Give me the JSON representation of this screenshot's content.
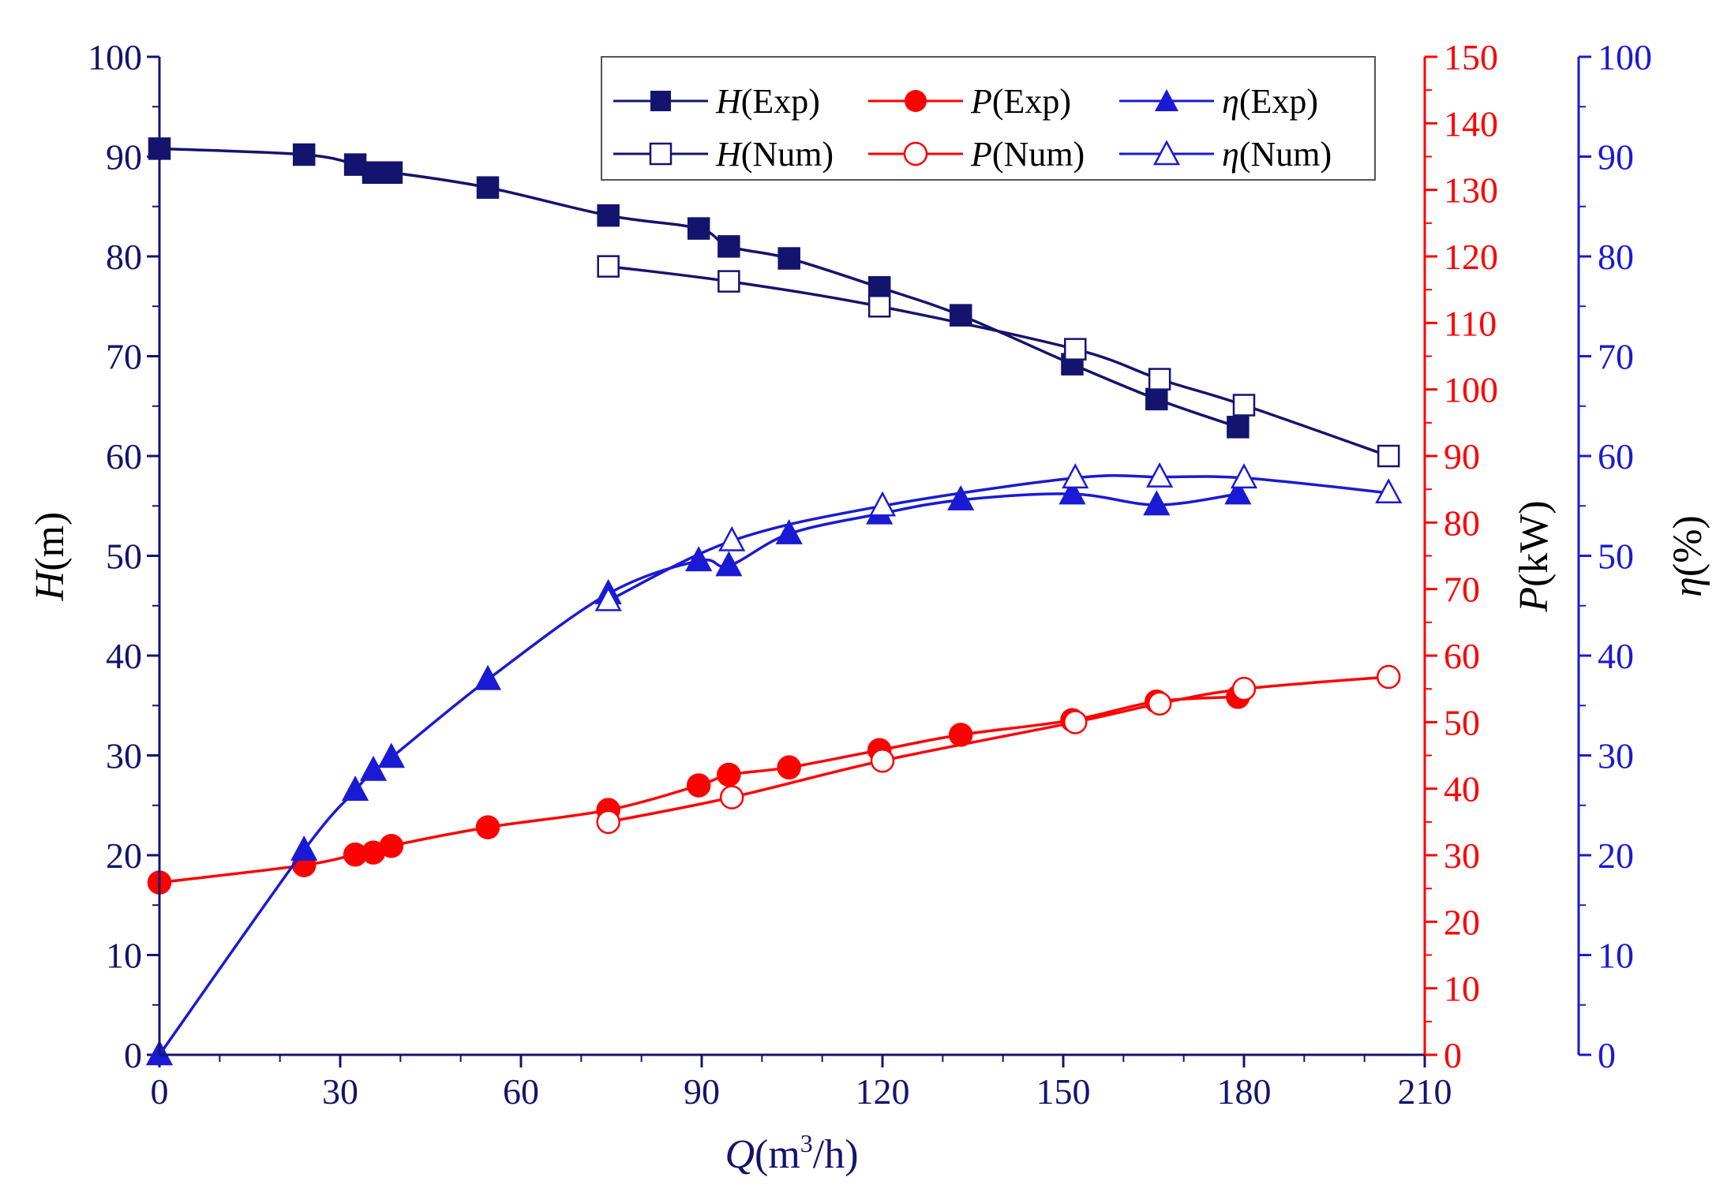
{
  "chart_data": {
    "type": "line",
    "x_axis": {
      "label_var": "Q",
      "label_unit_pre": "(m",
      "label_sup": "3",
      "label_unit_post": "/h)",
      "range": [
        0,
        210
      ],
      "ticks": [
        "0",
        "30",
        "60",
        "90",
        "120",
        "150",
        "180",
        "210"
      ]
    },
    "y_axes": {
      "H": {
        "label_var": "H",
        "label_unit": "(m)",
        "range": [
          0,
          100
        ],
        "color": "#14146e",
        "ticks": [
          "0",
          "10",
          "20",
          "30",
          "40",
          "50",
          "60",
          "70",
          "80",
          "90",
          "100"
        ]
      },
      "P": {
        "label_var": "P",
        "label_unit": "(kW)",
        "range": [
          0,
          150
        ],
        "color": "#ff0000",
        "ticks": [
          "0",
          "10",
          "20",
          "30",
          "40",
          "50",
          "60",
          "70",
          "80",
          "90",
          "100",
          "110",
          "120",
          "130",
          "140",
          "150"
        ]
      },
      "eta": {
        "label_var": "η",
        "label_unit": "(%)",
        "range": [
          0,
          100
        ],
        "color": "#1a1ad4",
        "ticks": [
          "0",
          "10",
          "20",
          "30",
          "40",
          "50",
          "60",
          "70",
          "80",
          "90",
          "100"
        ]
      }
    },
    "series": [
      {
        "id": "h-exp",
        "name": "H(Exp)",
        "var": "H",
        "suffix": "(Exp)",
        "axis": "H",
        "color": "#14146e",
        "marker": "square",
        "filled": true,
        "x": [
          0,
          24,
          32.5,
          35.5,
          38.5,
          54.5,
          74.5,
          89.5,
          94.5,
          104.5,
          119.5,
          133,
          151.5,
          165.5,
          179
        ],
        "y": [
          90.8,
          90.2,
          89.2,
          88.4,
          88.4,
          86.9,
          84.1,
          82.8,
          81,
          79.8,
          76.9,
          74.1,
          69.2,
          65.7,
          62.9
        ]
      },
      {
        "id": "h-num",
        "name": "H(Num)",
        "var": "H",
        "suffix": "(Num)",
        "axis": "H",
        "color": "#14146e",
        "marker": "square",
        "filled": false,
        "x": [
          74.5,
          94.5,
          119.5,
          152,
          166,
          180,
          204
        ],
        "y": [
          79,
          77.5,
          75,
          70.7,
          67.7,
          65.1,
          60
        ]
      },
      {
        "id": "p-exp",
        "name": "P(Exp)",
        "var": "P",
        "suffix": "(Exp)",
        "axis": "P",
        "color": "#ff0000",
        "marker": "circle",
        "filled": true,
        "x": [
          0,
          24,
          32.5,
          35.5,
          38.5,
          54.5,
          74.5,
          89.5,
          94.5,
          104.5,
          119.5,
          133,
          151.5,
          165.5,
          179
        ],
        "y": [
          25.9,
          28.5,
          30.1,
          30.4,
          31.4,
          34.2,
          36.8,
          40.5,
          42.1,
          43.2,
          45.8,
          48.1,
          50.3,
          53.1,
          53.8
        ]
      },
      {
        "id": "p-num",
        "name": "P(Num)",
        "var": "P",
        "suffix": "(Num)",
        "axis": "P",
        "color": "#ff0000",
        "marker": "circle",
        "filled": false,
        "x": [
          74.5,
          95,
          120,
          152,
          166,
          180,
          204
        ],
        "y": [
          35,
          38.7,
          44.2,
          50,
          52.8,
          55,
          56.8
        ]
      },
      {
        "id": "eta-exp",
        "name": "η(Exp)",
        "var": "η",
        "suffix": "(Exp)",
        "axis": "eta",
        "color": "#1a1ad4",
        "marker": "triangle",
        "filled": true,
        "x": [
          0,
          24,
          32.5,
          35.5,
          38.5,
          54.5,
          74.5,
          89.5,
          94.5,
          104.5,
          119.5,
          133,
          151.5,
          165.5,
          179
        ],
        "y": [
          0,
          20.5,
          26.5,
          28.5,
          29.8,
          37.6,
          46.2,
          49.5,
          49,
          52.2,
          54.2,
          55.6,
          56.2,
          55.1,
          56.2
        ]
      },
      {
        "id": "eta-num",
        "name": "η(Num)",
        "var": "η",
        "suffix": "(Num)",
        "axis": "eta",
        "color": "#1a1ad4",
        "marker": "triangle",
        "filled": false,
        "x": [
          74.5,
          95,
          120,
          152,
          166,
          180,
          204
        ],
        "y": [
          45.5,
          51.5,
          55,
          57.8,
          57.9,
          57.8,
          56.3
        ]
      }
    ]
  }
}
